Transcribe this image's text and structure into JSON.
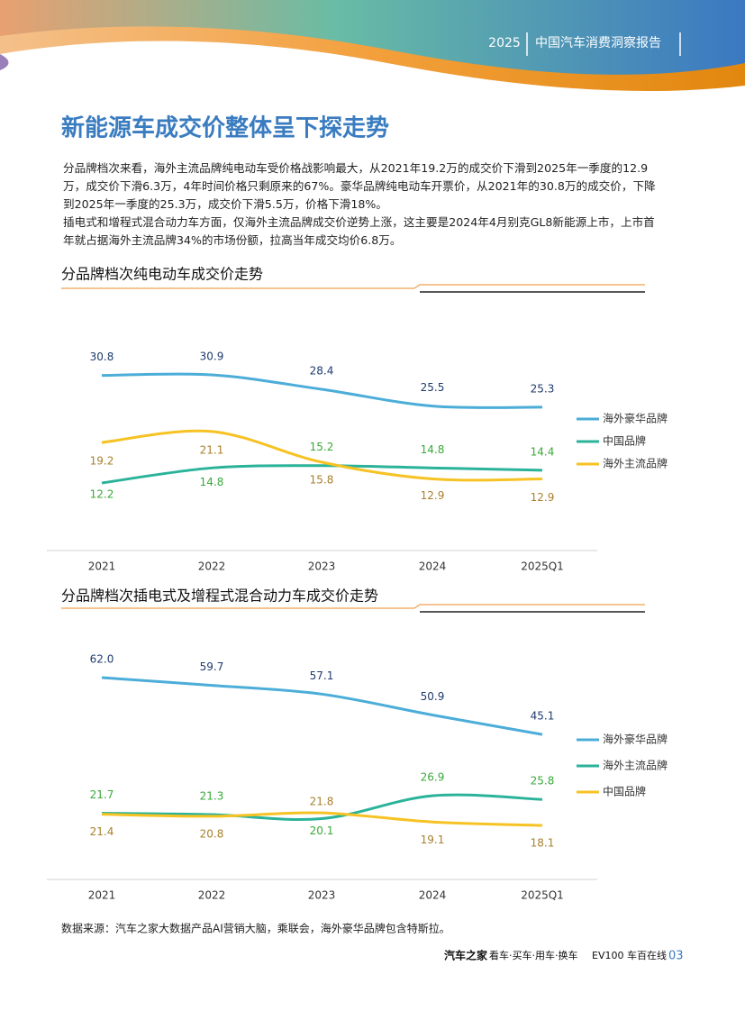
{
  "header": {
    "year": "2025",
    "report": "中国汽车消费洞察报告"
  },
  "title": "新能源车成交价整体呈下探走势",
  "paragraphs": [
    "分品牌档次来看，海外主流品牌纯电动车受价格战影响最大，从2021年19.2万的成交价下滑到2025年一季度的12.9万，成交价下滑6.3万，4年时间价格只剩原来的67%。豪华品牌纯电动车开票价，从2021年的30.8万的成交价，下降到2025年一季度的25.3万，成交价下滑5.5万，价格下滑18%。",
    "插电式和增程式混合动力车方面，仅海外主流品牌成交价逆势上涨，这主要是2024年4月别克GL8新能源上市，上市首年就占据海外主流品牌34%的市场份额，拉高当年成交均价6.8万。"
  ],
  "chart_data": [
    {
      "type": "line",
      "title": "分品牌档次纯电动车成交价走势",
      "categories": [
        "2021",
        "2022",
        "2023",
        "2024",
        "2025Q1"
      ],
      "series": [
        {
          "name": "海外豪华品牌",
          "color": "#4badd8",
          "values": [
            30.8,
            30.9,
            28.4,
            25.5,
            25.3
          ]
        },
        {
          "name": "中国品牌",
          "color": "#2bb39a",
          "values": [
            12.2,
            14.8,
            15.2,
            14.8,
            14.4
          ]
        },
        {
          "name": "海外主流品牌",
          "color": "#f6c224",
          "values": [
            19.2,
            21.1,
            15.8,
            12.9,
            12.9
          ]
        }
      ]
    },
    {
      "type": "line",
      "title": "分品牌档次插电式及增程式混合动力车成交价走势",
      "categories": [
        "2021",
        "2022",
        "2023",
        "2024",
        "2025Q1"
      ],
      "series": [
        {
          "name": "海外豪华品牌",
          "color": "#4badd8",
          "values": [
            62,
            59.7,
            57.1,
            50.9,
            45.1
          ],
          "value_labels": [
            "62.0",
            "59.7",
            "57.1",
            "50.9",
            "45.1"
          ]
        },
        {
          "name": "海外主流品牌",
          "color": "#2bb39a",
          "values": [
            21.7,
            21.3,
            20.1,
            26.9,
            25.8
          ]
        },
        {
          "name": "中国品牌",
          "color": "#f6c224",
          "values": [
            21.4,
            20.8,
            21.8,
            19.1,
            18.1
          ]
        }
      ]
    }
  ],
  "source": "数据来源：汽车之家大数据产品AI营销大脑，乘联会，海外豪华品牌包含特斯拉。",
  "footer": {
    "brand": "汽车之家",
    "slogan": "看车·买车·用车·换车",
    "partner": "EV100 车百在线",
    "page": "03"
  }
}
